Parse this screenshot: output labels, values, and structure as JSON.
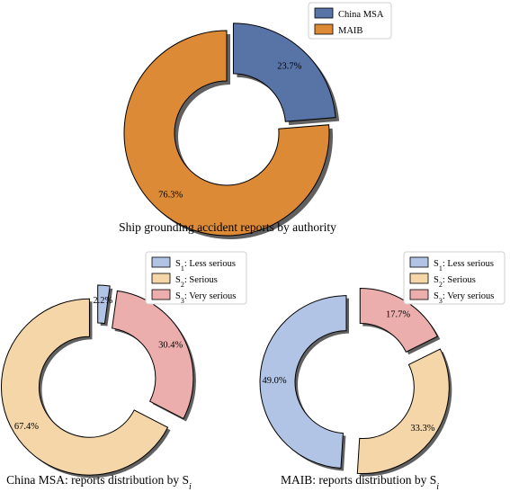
{
  "colors": {
    "blue": "#5873a6",
    "orange": "#dc8a35",
    "light_blue": "#b2c4e6",
    "peach": "#f4d6a8",
    "pink": "#ecadad",
    "shadow": "#606060"
  },
  "chart_data": [
    {
      "type": "pie",
      "variant": "donut",
      "title": "Ship grounding accident reports by authority",
      "categories": [
        "China MSA",
        "MAIB"
      ],
      "values": [
        23.7,
        76.3
      ],
      "labels": [
        "23.7%",
        "76.3%"
      ],
      "colors": [
        "#5873a6",
        "#dc8a35"
      ],
      "exploded": [
        "China MSA"
      ],
      "legend_position": "top-right"
    },
    {
      "type": "pie",
      "variant": "donut",
      "title": "China MSA: reports distribution by S",
      "title_subscript": "i",
      "categories": [
        "S1: Less serious",
        "S3: Very serious",
        "S2: Serious"
      ],
      "values": [
        2.2,
        30.4,
        67.4
      ],
      "labels": [
        "2.2%",
        "30.4%",
        "67.4%"
      ],
      "colors": [
        "#b2c4e6",
        "#ecadad",
        "#f4d6a8"
      ],
      "legend": [
        {
          "base": "S",
          "sub": "1",
          "text": ": Less serious",
          "color": "#b2c4e6"
        },
        {
          "base": "S",
          "sub": "2",
          "text": ": Serious",
          "color": "#f4d6a8"
        },
        {
          "base": "S",
          "sub": "3",
          "text": ": Very serious",
          "color": "#ecadad"
        }
      ],
      "exploded": [
        "S1: Less serious",
        "S3: Very serious",
        "S2: Serious"
      ],
      "legend_position": "top-right"
    },
    {
      "type": "pie",
      "variant": "donut",
      "title": "MAIB: reports distribution by S",
      "title_subscript": "i",
      "categories": [
        "S3: Very serious",
        "S2: Serious",
        "S1: Less serious"
      ],
      "values": [
        17.7,
        33.3,
        49.0
      ],
      "labels": [
        "17.7%",
        "33.3%",
        "49.0%"
      ],
      "colors": [
        "#ecadad",
        "#f4d6a8",
        "#b2c4e6"
      ],
      "legend": [
        {
          "base": "S",
          "sub": "1",
          "text": ": Less serious",
          "color": "#b2c4e6"
        },
        {
          "base": "S",
          "sub": "2",
          "text": ": Serious",
          "color": "#f4d6a8"
        },
        {
          "base": "S",
          "sub": "3",
          "text": ": Very serious",
          "color": "#ecadad"
        }
      ],
      "exploded": [
        "S3: Very serious",
        "S2: Serious",
        "S1: Less serious"
      ],
      "legend_position": "top-right"
    }
  ]
}
